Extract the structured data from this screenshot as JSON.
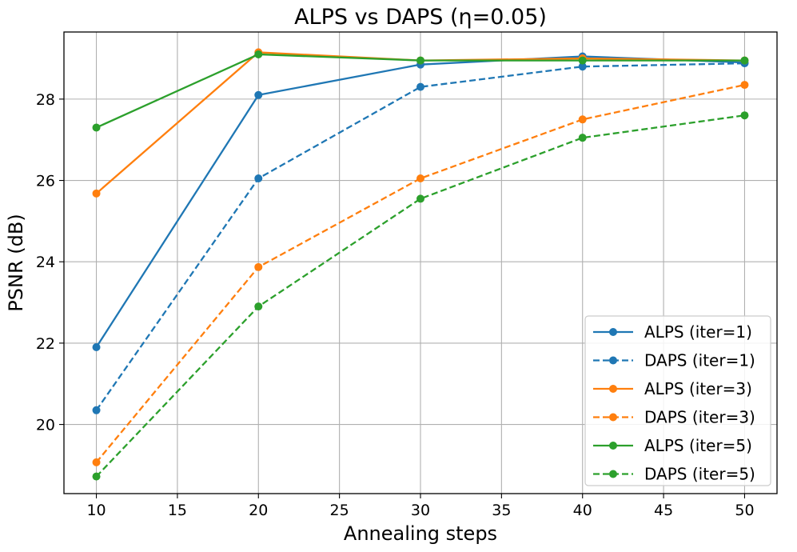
{
  "chart_data": {
    "type": "line",
    "title": "ALPS vs DAPS (η=0.05)",
    "xlabel": "Annealing steps",
    "ylabel": "PSNR (dB)",
    "x": [
      10,
      20,
      30,
      40,
      50
    ],
    "xticks": [
      10,
      15,
      20,
      25,
      30,
      35,
      40,
      45,
      50
    ],
    "yticks": [
      20,
      22,
      24,
      26,
      28
    ],
    "xlim": [
      8,
      52
    ],
    "ylim": [
      18.3,
      29.65
    ],
    "grid": true,
    "legend_position": "lower-right",
    "series": [
      {
        "name": "ALPS (iter=1)",
        "color": "#1f77b4",
        "linestyle": "solid",
        "values": [
          21.9,
          28.1,
          28.85,
          29.05,
          28.9
        ]
      },
      {
        "name": "DAPS (iter=1)",
        "color": "#1f77b4",
        "linestyle": "dashed",
        "values": [
          20.35,
          26.05,
          28.3,
          28.8,
          28.88
        ]
      },
      {
        "name": "ALPS (iter=3)",
        "color": "#ff7f0e",
        "linestyle": "solid",
        "values": [
          25.68,
          29.15,
          28.95,
          29.0,
          28.95
        ]
      },
      {
        "name": "DAPS (iter=3)",
        "color": "#ff7f0e",
        "linestyle": "dashed",
        "values": [
          19.07,
          23.87,
          26.05,
          27.5,
          28.35
        ]
      },
      {
        "name": "ALPS (iter=5)",
        "color": "#2ca02c",
        "linestyle": "solid",
        "values": [
          27.3,
          29.1,
          28.95,
          28.95,
          28.95
        ]
      },
      {
        "name": "DAPS (iter=5)",
        "color": "#2ca02c",
        "linestyle": "dashed",
        "values": [
          18.72,
          22.9,
          25.55,
          27.05,
          27.6
        ]
      }
    ]
  }
}
